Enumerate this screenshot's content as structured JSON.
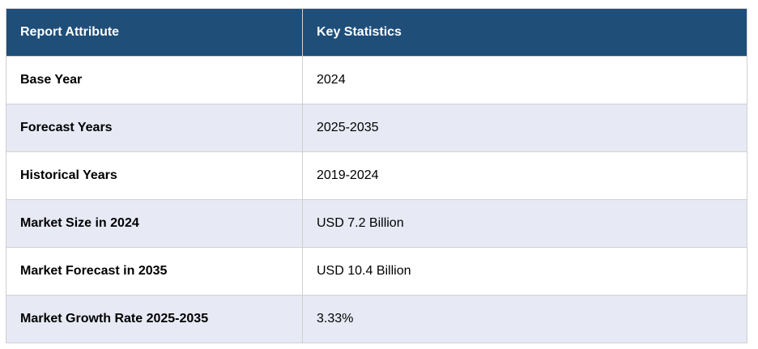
{
  "table": {
    "header": [
      "Report Attribute",
      "Key Statistics"
    ],
    "rows": [
      [
        "Base Year",
        "2024"
      ],
      [
        "Forecast Years",
        "2025-2035"
      ],
      [
        "Historical Years",
        "2019-2024"
      ],
      [
        "Market Size in 2024",
        "USD 7.2 Billion"
      ],
      [
        "Market Forecast in 2035",
        "USD 10.4 Billion"
      ],
      [
        "Market Growth Rate 2025-2035",
        "3.33%"
      ]
    ]
  }
}
